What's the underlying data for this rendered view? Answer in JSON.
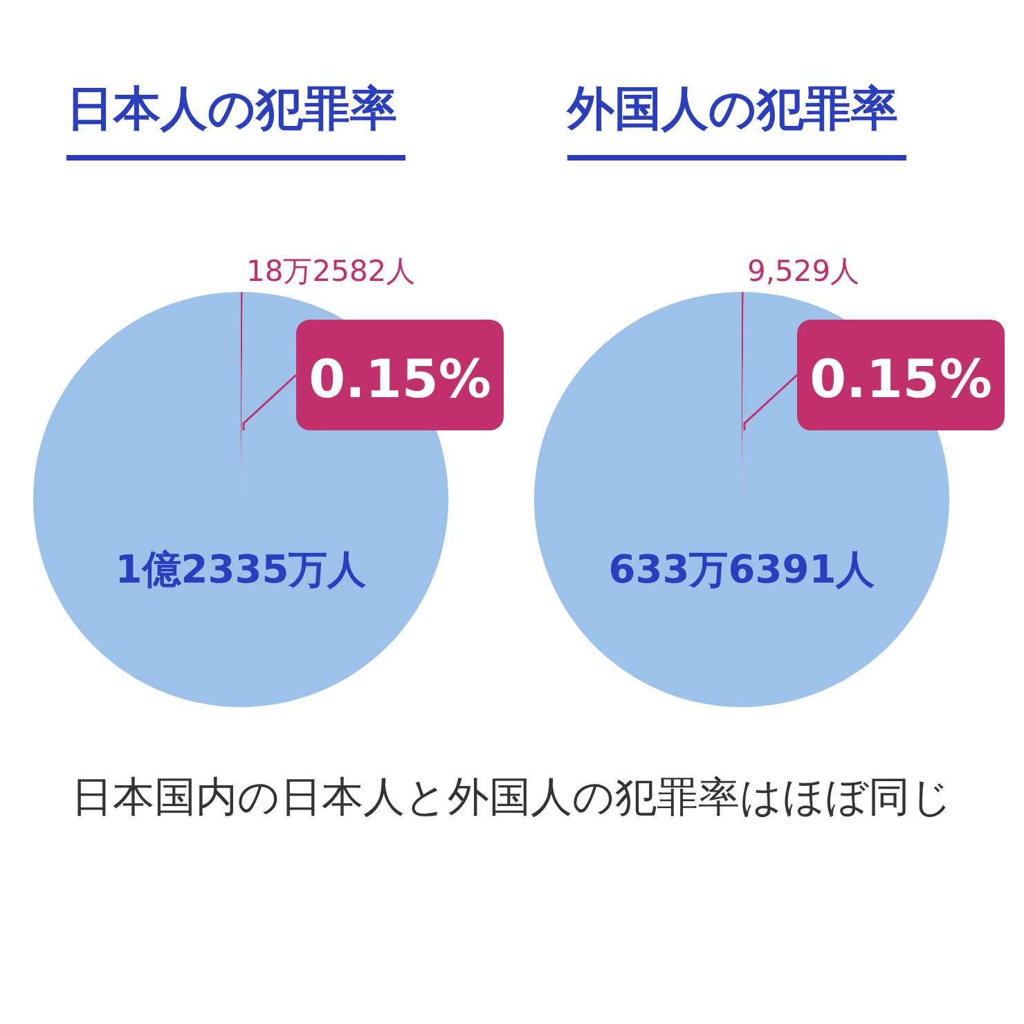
{
  "chart_data": [
    {
      "type": "pie",
      "title": "日本人の犯罪率",
      "categories": [
        "18万2582人",
        "1億2335万人"
      ],
      "values": [
        0.15,
        99.85
      ],
      "colors": [
        "#c2306c",
        "#9dc2ea"
      ],
      "annotations": [
        "0.15%"
      ]
    },
    {
      "type": "pie",
      "title": "外国人の犯罪率",
      "categories": [
        "9,529人",
        "633万6391人"
      ],
      "values": [
        0.15,
        99.85
      ],
      "colors": [
        "#c2306c",
        "#9dc2ea"
      ],
      "annotations": [
        "0.15%",
        "日本国内の日本人と外国人の犯罪率はほぼ同じ"
      ]
    }
  ]
}
